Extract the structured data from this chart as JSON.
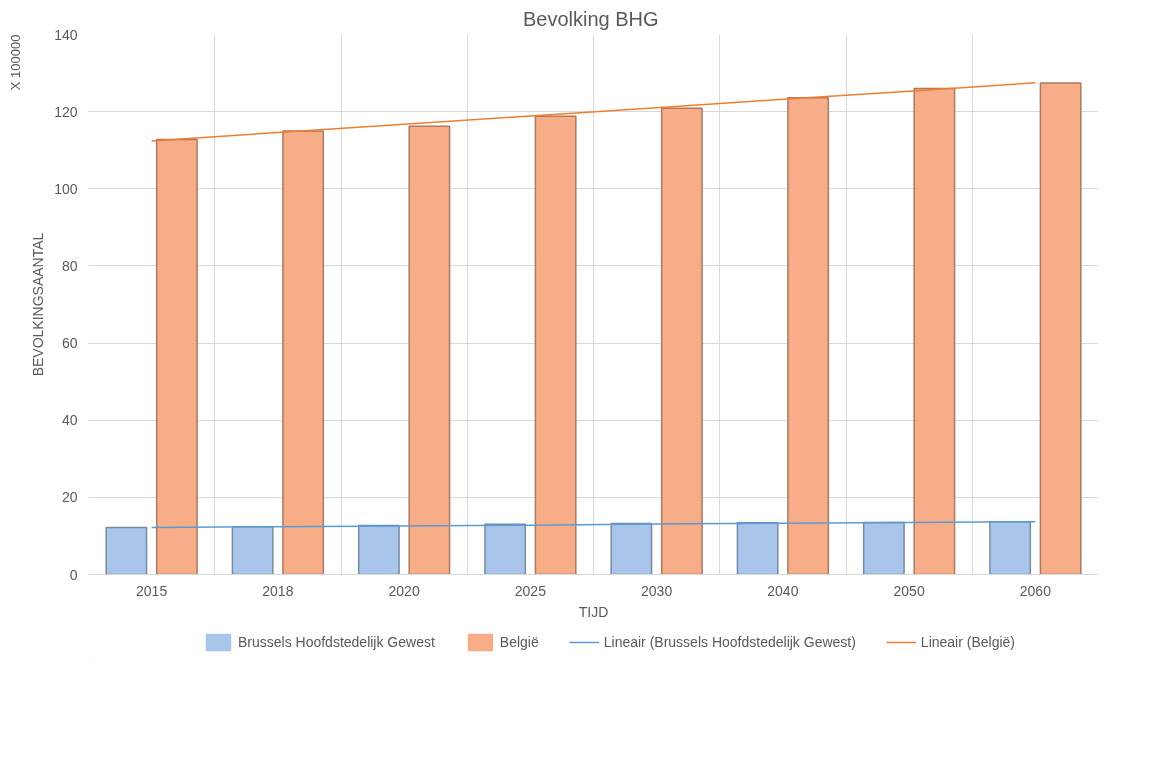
{
  "chart_data": {
    "type": "bar",
    "title": "Bevolking  BHG",
    "xlabel": "TIJD",
    "ylabel": "BEVOLKINGSAANTAL",
    "annotations": [
      "X 100000"
    ],
    "categories": [
      "2015",
      "2018",
      "2020",
      "2025",
      "2030",
      "2040",
      "2050",
      "2060"
    ],
    "series": [
      {
        "name": "Brussels Hoofdstedelijk Gewest",
        "color": "#a9c6ea",
        "values": [
          12.2,
          12.4,
          12.7,
          13.0,
          13.2,
          13.4,
          13.5,
          13.7
        ]
      },
      {
        "name": "België",
        "color": "#f6ad88",
        "values": [
          112.8,
          115.0,
          116.2,
          118.8,
          120.9,
          123.6,
          126.0,
          127.4
        ]
      },
      {
        "name": "Lineair (Brussels Hoofdstedelijk Gewest)",
        "type": "line",
        "color": "#5b9bd5",
        "values": [
          12.2,
          12.4,
          12.6,
          12.8,
          13.1,
          13.3,
          13.5,
          13.7
        ]
      },
      {
        "name": "Lineair (België)",
        "type": "line",
        "color": "#ed7d31",
        "values": [
          112.4,
          114.6,
          116.7,
          118.9,
          121.0,
          123.2,
          125.3,
          127.5
        ]
      }
    ],
    "ylim": [
      0,
      140
    ],
    "yticks": [
      0,
      20,
      40,
      60,
      80,
      100,
      120,
      140
    ],
    "grid": true,
    "legend": "bottom"
  }
}
